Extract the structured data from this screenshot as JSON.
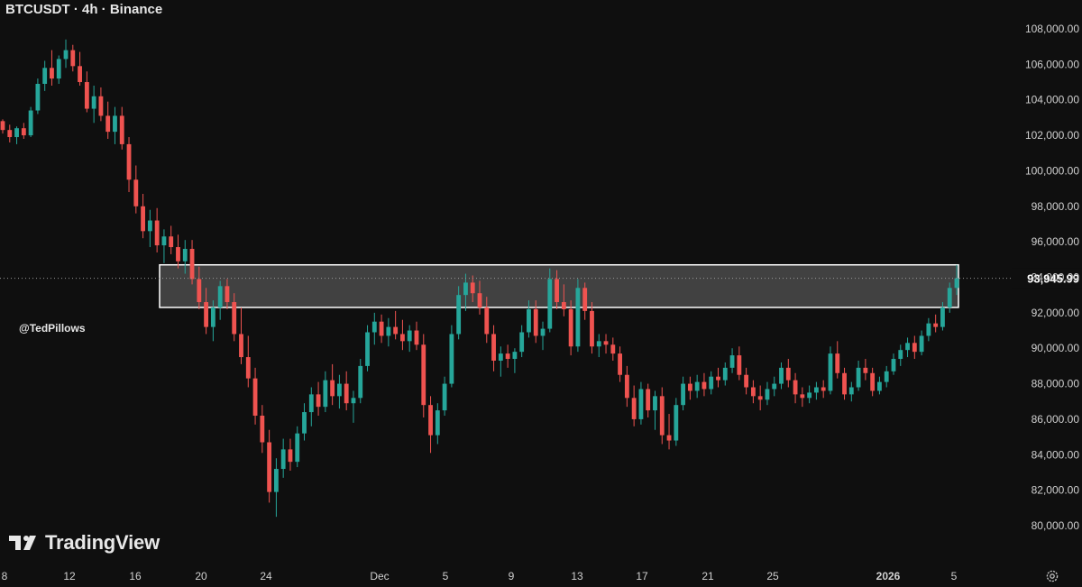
{
  "header": {
    "title": "BTCUSDT · 4h · Binance"
  },
  "watermark": {
    "handle": "@TedPillows",
    "brand": "TradingView",
    "logo_icon": "tradingview-logo-icon"
  },
  "settings": {
    "icon": "gear-icon"
  },
  "colors": {
    "background": "#0f0f0f",
    "up": "#26a69a",
    "down": "#ef5350",
    "zone_fill": "#454545",
    "zone_border": "#ffffff",
    "text": "#d9d9d9"
  },
  "chart_data": {
    "type": "candlestick",
    "symbol": "BTCUSDT",
    "interval": "4h",
    "exchange": "Binance",
    "ylim": [
      79000,
      109000
    ],
    "y_ticks": [
      "108,000.00",
      "106,000.00",
      "104,000.00",
      "102,000.00",
      "100,000.00",
      "98,000.00",
      "96,000.00",
      "94,000.00",
      "92,000.00",
      "90,000.00",
      "88,000.00",
      "86,000.00",
      "84,000.00",
      "82,000.00",
      "80,000.00"
    ],
    "x_ticks": [
      "8",
      "12",
      "16",
      "20",
      "24",
      "Dec",
      "5",
      "9",
      "13",
      "17",
      "21",
      "25",
      "2026",
      "5"
    ],
    "last_price": "93,945.99",
    "last_price_value": 93945.99,
    "zone": {
      "low": 92300,
      "high": 94700
    },
    "series": [
      {
        "ohlc": [
          [
            102800,
            102900,
            102100,
            102300
          ],
          [
            102300,
            102600,
            101600,
            101900
          ],
          [
            101900,
            102500,
            101500,
            102400
          ],
          [
            102400,
            102700,
            101800,
            102000
          ],
          [
            102000,
            103600,
            101900,
            103400
          ],
          [
            103400,
            105200,
            103200,
            104900
          ],
          [
            104900,
            106200,
            104500,
            105800
          ],
          [
            105800,
            106800,
            104800,
            105200
          ],
          [
            105200,
            106500,
            104900,
            106300
          ],
          [
            106300,
            107400,
            105800,
            106800
          ],
          [
            106800,
            107100,
            105600,
            105900
          ],
          [
            105900,
            106700,
            104800,
            105000
          ],
          [
            105000,
            105600,
            103300,
            103500
          ],
          [
            103500,
            104800,
            102700,
            104200
          ],
          [
            104200,
            104700,
            102800,
            103100
          ],
          [
            103100,
            103900,
            101800,
            102200
          ],
          [
            102200,
            103600,
            101500,
            103100
          ],
          [
            103100,
            103600,
            101200,
            101500
          ],
          [
            101500,
            101900,
            98800,
            99500
          ],
          [
            99500,
            100300,
            97600,
            98000
          ],
          [
            98000,
            98700,
            96200,
            96600
          ],
          [
            96600,
            97800,
            95700,
            97200
          ],
          [
            97200,
            97900,
            95400,
            95800
          ],
          [
            95800,
            96700,
            94800,
            96300
          ],
          [
            96300,
            96900,
            95300,
            95700
          ],
          [
            95700,
            96400,
            94500,
            94900
          ],
          [
            94900,
            96100,
            94200,
            95600
          ],
          [
            95600,
            96100,
            93600,
            93900
          ],
          [
            93900,
            94600,
            92200,
            92600
          ],
          [
            92600,
            93400,
            90800,
            91200
          ],
          [
            91200,
            92700,
            90400,
            92300
          ],
          [
            92300,
            93800,
            91600,
            93500
          ],
          [
            93500,
            93900,
            92200,
            92600
          ],
          [
            92600,
            93100,
            90400,
            90800
          ],
          [
            90800,
            92300,
            89100,
            89500
          ],
          [
            89500,
            90700,
            87800,
            88300
          ],
          [
            88300,
            88900,
            85700,
            86200
          ],
          [
            86200,
            86800,
            84100,
            84700
          ],
          [
            84700,
            85400,
            81300,
            81900
          ],
          [
            81900,
            83800,
            80500,
            83200
          ],
          [
            83200,
            84900,
            82700,
            84300
          ],
          [
            84300,
            84900,
            83100,
            83600
          ],
          [
            83600,
            85600,
            83300,
            85200
          ],
          [
            85200,
            86900,
            84800,
            86400
          ],
          [
            86400,
            87800,
            85600,
            87400
          ],
          [
            87400,
            88100,
            86200,
            86700
          ],
          [
            86700,
            88700,
            86400,
            88200
          ],
          [
            88200,
            89100,
            86800,
            87300
          ],
          [
            87300,
            88500,
            86600,
            88000
          ],
          [
            88000,
            88700,
            86500,
            86900
          ],
          [
            86900,
            87600,
            85800,
            87200
          ],
          [
            87200,
            89400,
            86900,
            89000
          ],
          [
            89000,
            91300,
            88700,
            90900
          ],
          [
            90900,
            92000,
            90200,
            91500
          ],
          [
            91500,
            91900,
            90300,
            90700
          ],
          [
            90700,
            91700,
            90100,
            91200
          ],
          [
            91200,
            92100,
            90500,
            90800
          ],
          [
            90800,
            91600,
            89900,
            90400
          ],
          [
            90400,
            91300,
            89800,
            91000
          ],
          [
            91000,
            91500,
            89900,
            90200
          ],
          [
            90200,
            90800,
            86100,
            86800
          ],
          [
            86800,
            87300,
            84100,
            85100
          ],
          [
            85100,
            86900,
            84600,
            86500
          ],
          [
            86500,
            88400,
            86200,
            88000
          ],
          [
            88000,
            91300,
            87800,
            90800
          ],
          [
            90800,
            93500,
            90500,
            93000
          ],
          [
            93000,
            94200,
            92100,
            93700
          ],
          [
            93700,
            94100,
            92600,
            93100
          ],
          [
            93100,
            93800,
            91900,
            92300
          ],
          [
            92300,
            92900,
            90300,
            90800
          ],
          [
            90800,
            91300,
            88700,
            89300
          ],
          [
            89300,
            90100,
            88400,
            89700
          ],
          [
            89700,
            90200,
            88900,
            89400
          ],
          [
            89400,
            90000,
            88600,
            89800
          ],
          [
            89800,
            91300,
            89500,
            90900
          ],
          [
            90900,
            92700,
            90600,
            92200
          ],
          [
            92200,
            92700,
            90300,
            90700
          ],
          [
            90700,
            91500,
            89900,
            91100
          ],
          [
            91100,
            94500,
            90900,
            93900
          ],
          [
            93900,
            94400,
            92200,
            92600
          ],
          [
            92600,
            93600,
            91800,
            92200
          ],
          [
            92200,
            92700,
            89600,
            90100
          ],
          [
            90100,
            93900,
            89800,
            93400
          ],
          [
            93400,
            93700,
            91600,
            92100
          ],
          [
            92100,
            92600,
            89700,
            90100
          ],
          [
            90100,
            90800,
            89500,
            90400
          ],
          [
            90400,
            90800,
            89700,
            90200
          ],
          [
            90200,
            90600,
            89300,
            89700
          ],
          [
            89700,
            90100,
            88100,
            88500
          ],
          [
            88500,
            89000,
            86700,
            87200
          ],
          [
            87200,
            87900,
            85600,
            86000
          ],
          [
            86000,
            88100,
            85700,
            87700
          ],
          [
            87700,
            88000,
            86100,
            86500
          ],
          [
            86500,
            87600,
            85400,
            87300
          ],
          [
            87300,
            87800,
            84600,
            85100
          ],
          [
            85100,
            86300,
            84300,
            84800
          ],
          [
            84800,
            87200,
            84500,
            86800
          ],
          [
            86800,
            88400,
            86500,
            88000
          ],
          [
            88000,
            88400,
            87100,
            87600
          ],
          [
            87600,
            88500,
            87200,
            88100
          ],
          [
            88100,
            88600,
            87300,
            87700
          ],
          [
            87700,
            88700,
            87400,
            88400
          ],
          [
            88400,
            88900,
            87800,
            88200
          ],
          [
            88200,
            89200,
            87900,
            88900
          ],
          [
            88900,
            90000,
            88600,
            89600
          ],
          [
            89600,
            90100,
            88200,
            88500
          ],
          [
            88500,
            88900,
            87400,
            87800
          ],
          [
            87800,
            88200,
            86900,
            87300
          ],
          [
            87300,
            87900,
            86500,
            87100
          ],
          [
            87100,
            88100,
            86800,
            87700
          ],
          [
            87700,
            88400,
            87300,
            88000
          ],
          [
            88000,
            89200,
            87700,
            88900
          ],
          [
            88900,
            89400,
            87800,
            88200
          ],
          [
            88200,
            88600,
            86900,
            87400
          ],
          [
            87400,
            87800,
            86700,
            87200
          ],
          [
            87200,
            87900,
            86900,
            87500
          ],
          [
            87500,
            88100,
            87100,
            87800
          ],
          [
            87800,
            88200,
            87200,
            87600
          ],
          [
            87600,
            90100,
            87400,
            89700
          ],
          [
            89700,
            90400,
            88300,
            88600
          ],
          [
            88600,
            88900,
            87100,
            87400
          ],
          [
            87400,
            88100,
            87000,
            87800
          ],
          [
            87800,
            89300,
            87600,
            88900
          ],
          [
            88900,
            89400,
            88200,
            88600
          ],
          [
            88600,
            88900,
            87300,
            87600
          ],
          [
            87600,
            88400,
            87400,
            88100
          ],
          [
            88100,
            89000,
            87800,
            88700
          ],
          [
            88700,
            89700,
            88500,
            89400
          ],
          [
            89400,
            90200,
            89000,
            89900
          ],
          [
            89900,
            90600,
            89500,
            90300
          ],
          [
            90300,
            90700,
            89400,
            89800
          ],
          [
            89800,
            91000,
            89600,
            90700
          ],
          [
            90700,
            91700,
            90400,
            91400
          ],
          [
            91400,
            91900,
            90900,
            91200
          ],
          [
            91200,
            92600,
            91000,
            92300
          ],
          [
            92300,
            93700,
            92000,
            93400
          ],
          [
            93400,
            94700,
            93000,
            93946
          ]
        ]
      }
    ]
  }
}
